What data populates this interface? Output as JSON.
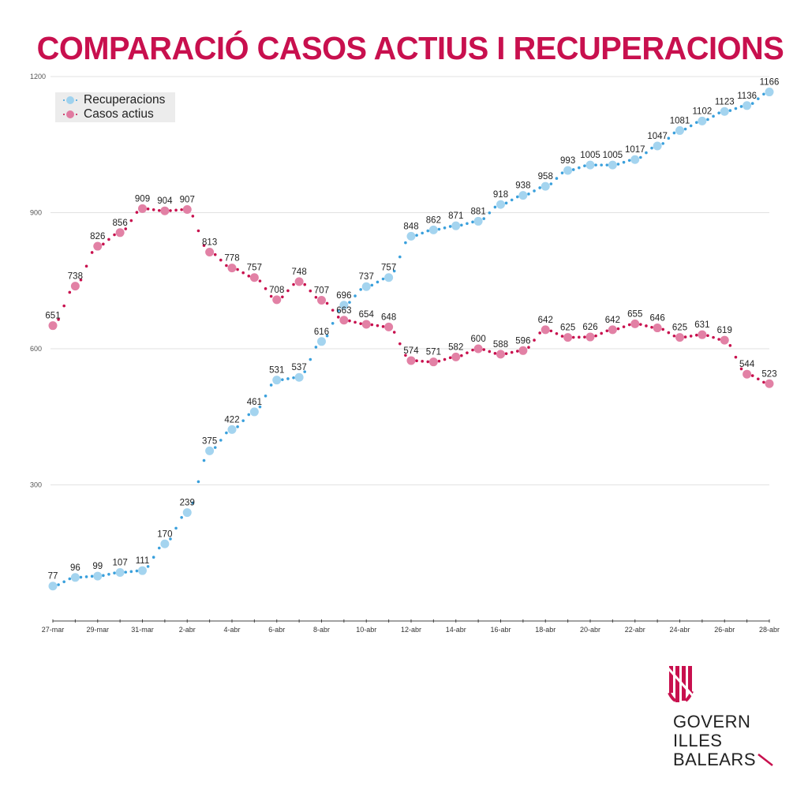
{
  "title": "COMPARACIÓ CASOS ACTIUS I RECUPERACIONS",
  "legend": {
    "items": [
      {
        "label": "Recuperacions",
        "color": "#9fd2ee",
        "point_color": "#3aa0dc"
      },
      {
        "label": "Casos actius",
        "color": "#e07aa0",
        "point_color": "#c8104e"
      }
    ]
  },
  "logo": {
    "lines": [
      "GOVERN",
      "ILLES",
      "BALEARS"
    ],
    "accent_color": "#c8104e"
  },
  "chart_data": {
    "type": "line",
    "title": "COMPARACIÓ CASOS ACTIUS I RECUPERACIONS",
    "xlabel": "",
    "ylabel": "",
    "ylim": [
      0,
      1200
    ],
    "yticks": [
      300,
      600,
      900,
      1200
    ],
    "grid": true,
    "legend_position": "top-left",
    "x": [
      "27-mar",
      "28-mar",
      "29-mar",
      "30-mar",
      "31-mar",
      "1-abr",
      "2-abr",
      "3-abr",
      "4-abr",
      "5-abr",
      "6-abr",
      "7-abr",
      "8-abr",
      "9-abr",
      "10-abr",
      "11-abr",
      "12-abr",
      "13-abr",
      "14-abr",
      "15-abr",
      "16-abr",
      "17-abr",
      "18-abr",
      "19-abr",
      "20-abr",
      "21-abr",
      "22-abr",
      "23-abr",
      "24-abr",
      "25-abr",
      "26-abr",
      "27-abr",
      "28-abr"
    ],
    "xtick_labels": [
      "27-mar",
      "29-mar",
      "31-mar",
      "2-abr",
      "4-abr",
      "6-abr",
      "8-abr",
      "10-abr",
      "12-abr",
      "14-abr",
      "16-abr",
      "18-abr",
      "20-abr",
      "22-abr",
      "24-abr",
      "26-abr",
      "28-abr"
    ],
    "series": [
      {
        "name": "Recuperacions",
        "color": "#9fd2ee",
        "values": [
          77,
          96,
          99,
          107,
          111,
          170,
          239,
          375,
          422,
          461,
          531,
          537,
          616,
          696,
          737,
          757,
          848,
          862,
          871,
          881,
          918,
          938,
          958,
          993,
          1005,
          1005,
          1017,
          1047,
          1081,
          1102,
          1123,
          1136,
          1166
        ]
      },
      {
        "name": "Casos actius",
        "color": "#e07aa0",
        "values": [
          651,
          738,
          826,
          856,
          909,
          904,
          907,
          813,
          778,
          757,
          708,
          748,
          707,
          663,
          654,
          648,
          574,
          571,
          582,
          600,
          588,
          596,
          642,
          625,
          626,
          642,
          655,
          646,
          625,
          631,
          619,
          544,
          523
        ]
      }
    ]
  }
}
